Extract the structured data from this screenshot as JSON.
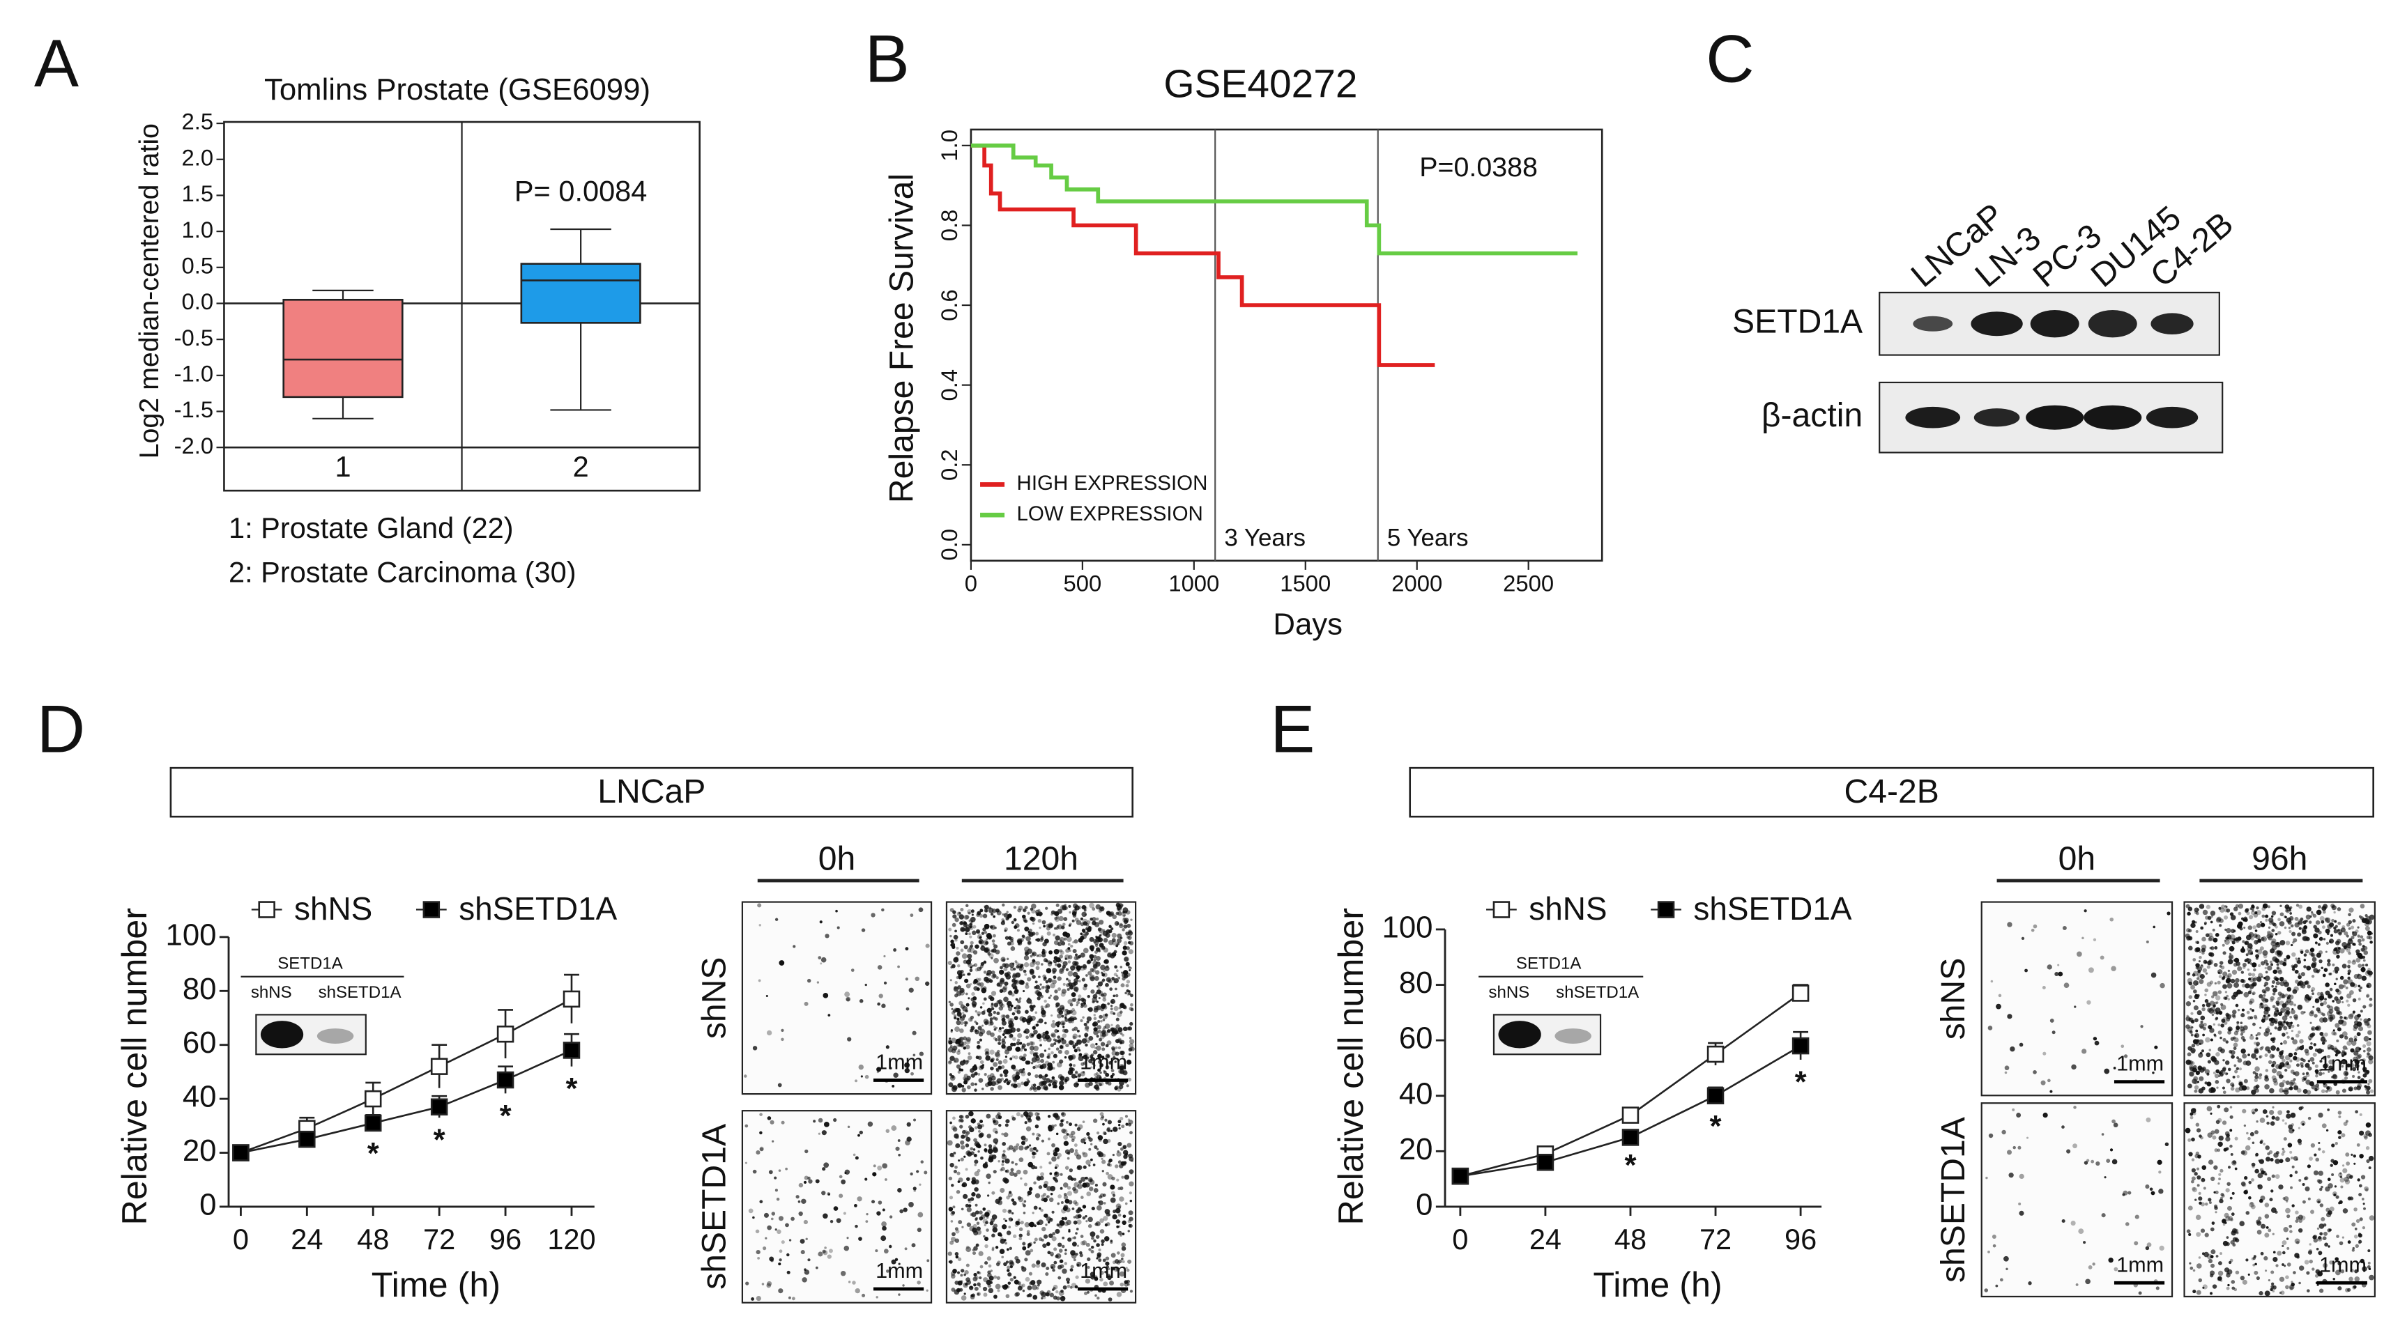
{
  "chart_data": [
    {
      "type": "box",
      "panel": "A",
      "title": "Tomlins Prostate (GSE6099)",
      "ylabel": "Log2 median-centered ratio",
      "categories": [
        "1",
        "2"
      ],
      "boxes": [
        {
          "min": -1.6,
          "q1": -1.3,
          "median": -0.78,
          "q3": 0.05,
          "max": 0.18
        },
        {
          "min": -1.48,
          "q1": -0.27,
          "median": 0.32,
          "q3": 0.55,
          "max": 1.03
        }
      ],
      "colors": [
        "#f08080",
        "#1e9be8"
      ],
      "ylim": [
        -2.6,
        2.52
      ],
      "yticks": [
        2.5,
        {
          "value": 2,
          "label": "2.0"
        },
        1.5,
        {
          "value": 1,
          "label": "1.0"
        },
        0.5,
        {
          "value": 0,
          "label": "0.0"
        },
        -0.5,
        {
          "value": -1,
          "label": "-1.0"
        },
        -1.5,
        {
          "value": -2,
          "label": "-2.0"
        }
      ],
      "annotation": "P= 0.0084",
      "notes": [
        "1: Prostate Gland (22)",
        "2: Prostate Carcinoma (30)"
      ]
    },
    {
      "type": "step",
      "panel": "B",
      "title": "GSE40272",
      "xlabel": "Days",
      "ylabel": "Relapse Free Survival",
      "xlim": [
        0,
        2830
      ],
      "xticks": [
        0,
        500,
        1000,
        1500,
        2000,
        2500
      ],
      "ylim": [
        -0.04,
        1.04
      ],
      "yticks": [
        {
          "value": 0,
          "label": "0.0"
        },
        0.2,
        0.4,
        0.6,
        0.8,
        {
          "value": 1,
          "label": "1.0"
        }
      ],
      "series": [
        {
          "name": "HIGH EXPRESSION",
          "color": "#e02020",
          "x": [
            0,
            60,
            60,
            90,
            90,
            130,
            130,
            460,
            460,
            740,
            740,
            1110,
            1110,
            1215,
            1215,
            1830,
            1830,
            2080
          ],
          "values": [
            1.0,
            1.0,
            0.95,
            0.95,
            0.88,
            0.88,
            0.84,
            0.84,
            0.8,
            0.8,
            0.73,
            0.73,
            0.67,
            0.67,
            0.6,
            0.6,
            0.45,
            0.45
          ]
        },
        {
          "name": "LOW EXPRESSION",
          "color": "#66cc44",
          "x": [
            0,
            190,
            190,
            290,
            290,
            360,
            360,
            430,
            430,
            570,
            570,
            1775,
            1775,
            1830,
            1830,
            2720
          ],
          "values": [
            1.0,
            1.0,
            0.97,
            0.97,
            0.95,
            0.95,
            0.92,
            0.92,
            0.89,
            0.89,
            0.86,
            0.86,
            0.8,
            0.8,
            0.73,
            0.73
          ]
        }
      ],
      "vlines": [
        1095,
        1825
      ],
      "vline_labels": [
        "3 Years",
        "5 Years"
      ],
      "annotation": "P=0.0388",
      "legend": "lower left"
    },
    {
      "type": "line",
      "panel": "D",
      "panel_title": "LNCaP",
      "xlabel": "Time (h)",
      "ylabel": "Relative cell number",
      "x": [
        0,
        24,
        48,
        72,
        96,
        120
      ],
      "xlim": [
        -4.4,
        128.3
      ],
      "xticks": [
        0,
        24,
        48,
        72,
        96,
        120
      ],
      "ylim": [
        0,
        100
      ],
      "yticks": [
        0,
        20,
        40,
        60,
        80,
        100
      ],
      "series": [
        {
          "name": "shNS",
          "color": "#ffffff",
          "values": [
            20,
            29,
            40,
            52,
            64,
            77
          ],
          "errors": [
            1,
            4,
            6,
            8,
            9,
            9
          ]
        },
        {
          "name": "shSETD1A",
          "color": "#000000",
          "values": [
            20,
            25,
            31,
            37,
            47,
            58
          ],
          "errors": [
            1,
            2,
            3,
            4,
            5,
            6
          ],
          "significance": [
            null,
            null,
            "*",
            "*",
            "*",
            "*"
          ]
        }
      ],
      "inset": {
        "label": "SETD1A",
        "lanes": [
          "shNS",
          "shSETD1A"
        ]
      },
      "micrographs": {
        "columns": [
          "0h",
          "120h"
        ],
        "rows": [
          "shNS",
          "shSETD1A"
        ],
        "scale_label": "1mm"
      }
    },
    {
      "type": "line",
      "panel": "E",
      "panel_title": "C4-2B",
      "xlabel": "Time (h)",
      "ylabel": "Relative cell number",
      "x": [
        0,
        24,
        48,
        72,
        96
      ],
      "xlim": [
        -4.3,
        101.9
      ],
      "xticks": [
        0,
        24,
        48,
        72,
        96
      ],
      "ylim": [
        0,
        100
      ],
      "yticks": [
        0,
        20,
        40,
        60,
        80,
        100
      ],
      "series": [
        {
          "name": "shNS",
          "color": "#ffffff",
          "values": [
            11,
            19,
            33,
            55,
            77
          ],
          "errors": [
            1,
            2,
            2,
            4,
            3
          ]
        },
        {
          "name": "shSETD1A",
          "color": "#000000",
          "values": [
            11,
            16,
            25,
            40,
            58
          ],
          "errors": [
            1,
            1,
            2,
            3,
            5
          ],
          "significance": [
            null,
            null,
            "*",
            "*",
            "*"
          ]
        }
      ],
      "inset": {
        "label": "SETD1A",
        "lanes": [
          "shNS",
          "shSETD1A"
        ]
      },
      "micrographs": {
        "columns": [
          "0h",
          "96h"
        ],
        "rows": [
          "shNS",
          "shSETD1A"
        ],
        "scale_label": "1mm"
      }
    }
  ],
  "blot": {
    "panel": "C",
    "lanes": [
      "LNCaP",
      "LN-3",
      "PC-3",
      "DU145",
      "C4-2B"
    ],
    "rows": [
      "SETD1A",
      "β-actin"
    ]
  }
}
